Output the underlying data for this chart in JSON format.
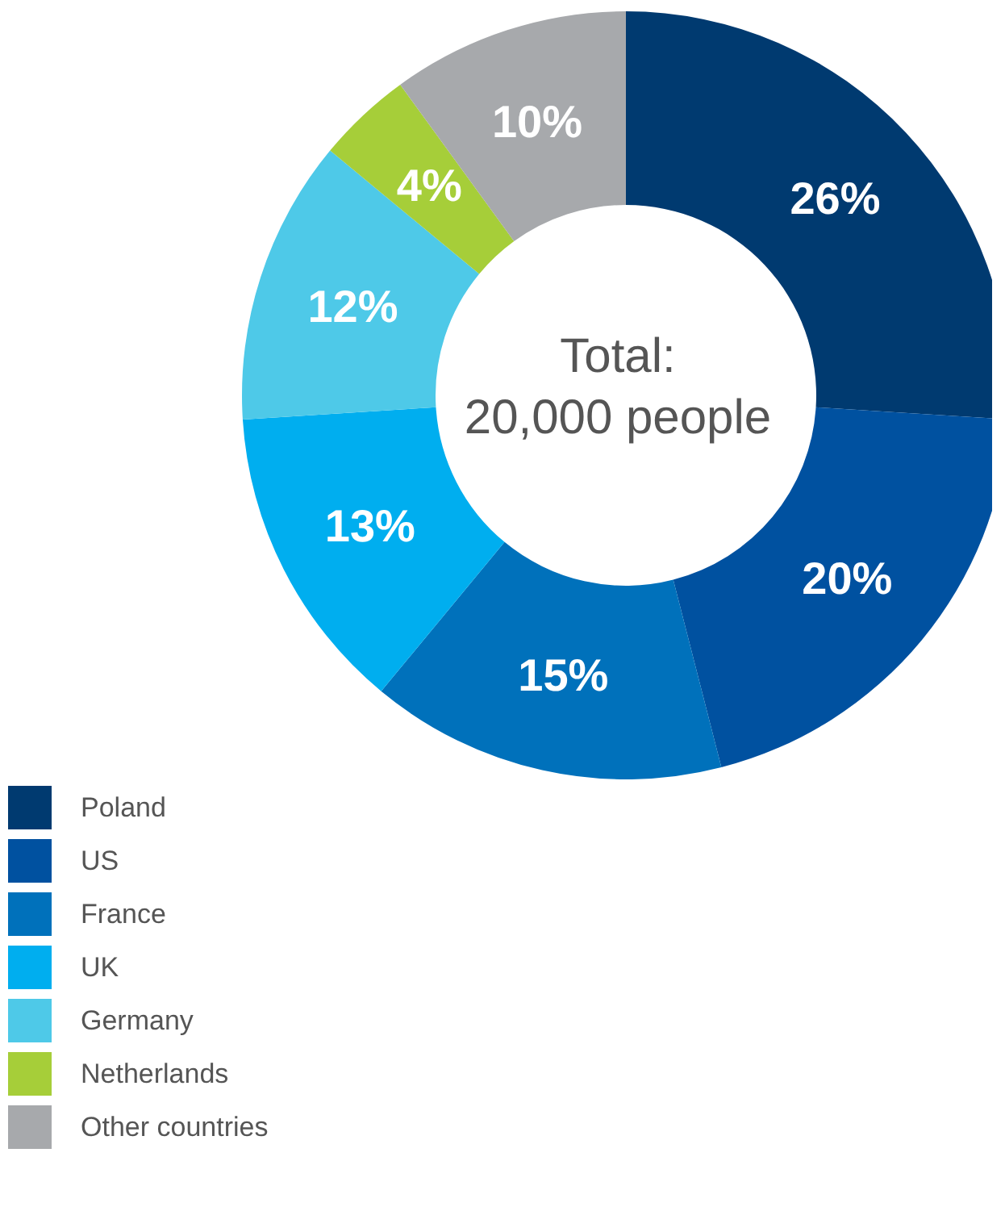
{
  "chart_data": {
    "type": "donut",
    "categories": [
      "Poland",
      "US",
      "France",
      "UK",
      "Germany",
      "Netherlands",
      "Other countries"
    ],
    "values": [
      26,
      20,
      15,
      13,
      12,
      4,
      10
    ],
    "colors": [
      "#003a70",
      "#0051a0",
      "#0071bb",
      "#00aeef",
      "#4ec9e8",
      "#a6ce39",
      "#a7a9ac"
    ],
    "value_labels": [
      "26%",
      "20%",
      "15%",
      "13%",
      "12%",
      "4%",
      "10%"
    ],
    "annotations": [
      "Total:",
      "20,000 people"
    ],
    "legend": "bottom left"
  }
}
